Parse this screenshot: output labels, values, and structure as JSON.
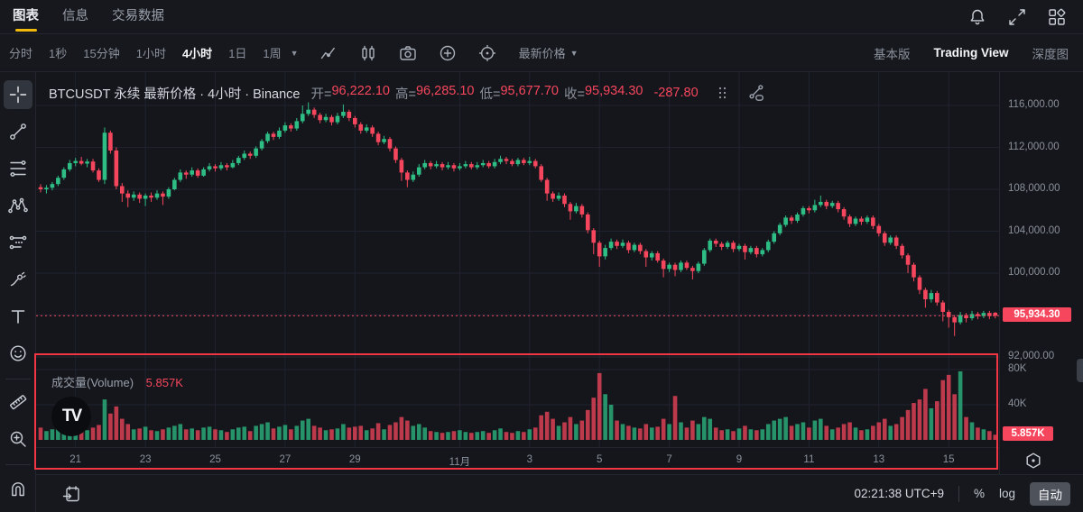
{
  "topbar": {
    "tabs": [
      {
        "label": "图表",
        "active": true
      },
      {
        "label": "信息",
        "active": false
      },
      {
        "label": "交易数据",
        "active": false
      }
    ],
    "icons": [
      "notifications",
      "fullscreen",
      "widgets"
    ]
  },
  "toolbar": {
    "intervals": [
      "分时",
      "1秒",
      "15分钟",
      "1小时",
      "4小时",
      "1日",
      "1周"
    ],
    "active_interval": "4小时",
    "latest_price_label": "最新价格",
    "icons": [
      "indicators",
      "candle-style",
      "screenshot",
      "add",
      "settings-target"
    ],
    "right_tabs": [
      {
        "label": "基本版",
        "active": false
      },
      {
        "label": "Trading View",
        "active": true
      },
      {
        "label": "深度图",
        "active": false
      }
    ]
  },
  "chart_header": {
    "title": "BTCUSDT 永续 最新价格 · 4小时 · Binance",
    "ohlc": [
      {
        "label": "开=",
        "value": "96,222.10"
      },
      {
        "label": "高=",
        "value": "96,285.10"
      },
      {
        "label": "低=",
        "value": "95,677.70"
      },
      {
        "label": "收=",
        "value": "95,934.30"
      }
    ],
    "change": "-287.80"
  },
  "sidebar": {
    "tools": [
      "crosshair",
      "trend-line",
      "fib-retracement",
      "xabcd-pattern",
      "projection",
      "brush",
      "text",
      "emoji",
      "divider",
      "ruler",
      "zoom-in",
      "divider"
    ],
    "active_tool": "crosshair",
    "bottom_tool": "magnet"
  },
  "volume_pane": {
    "title": "成交量(Volume)",
    "value": "5.857K",
    "logo": "TV"
  },
  "bottom_bar": {
    "clock": "02:21:38 UTC+9",
    "percent": "%",
    "log": "log",
    "auto": "自动"
  },
  "colors": {
    "up": "#2ebd85",
    "down": "#f6465d",
    "accent_yellow": "#f0b90b",
    "annotation_red": "#f23645",
    "badge_red": "#f6465d",
    "grid": "#1f2330",
    "background": "#14161b"
  },
  "chart_data": {
    "type": "candlestick",
    "symbol": "BTCUSDT",
    "market": "永续",
    "exchange": "Binance",
    "interval": "4小时",
    "price_axis": {
      "ticks": [
        {
          "label": "116,000.00",
          "value": 116000
        },
        {
          "label": "112,000.00",
          "value": 112000
        },
        {
          "label": "108,000.00",
          "value": 108000
        },
        {
          "label": "104,000.00",
          "value": 104000
        },
        {
          "label": "100,000.00",
          "value": 100000
        },
        {
          "label": "",
          "value": 96000
        },
        {
          "label": "92,000.00",
          "value": 92000
        }
      ],
      "visible_range": [
        91500,
        117300
      ]
    },
    "current_price": {
      "value": 95934.3,
      "label": "95,934.30"
    },
    "current_volume": {
      "value": 5.857,
      "label": "5.857K"
    },
    "volume_axis": {
      "ticks": [
        {
          "label": "80K",
          "value": 80
        },
        {
          "label": "40K",
          "value": 40
        }
      ],
      "unit": "K"
    },
    "x_ticks": [
      {
        "label": "21",
        "index": 6
      },
      {
        "label": "23",
        "index": 18
      },
      {
        "label": "25",
        "index": 30
      },
      {
        "label": "27",
        "index": 42
      },
      {
        "label": "29",
        "index": 54
      },
      {
        "label": "11月",
        "index": 72
      },
      {
        "label": "3",
        "index": 84
      },
      {
        "label": "5",
        "index": 96
      },
      {
        "label": "7",
        "index": 108
      },
      {
        "label": "9",
        "index": 120
      },
      {
        "label": "11",
        "index": 132
      },
      {
        "label": "13",
        "index": 144
      },
      {
        "label": "15",
        "index": 156
      }
    ],
    "candles_format": [
      "open",
      "high",
      "low",
      "close",
      "volume_K"
    ],
    "candles": [
      [
        108200,
        108500,
        107700,
        108000,
        14
      ],
      [
        108000,
        108400,
        107600,
        108150,
        10
      ],
      [
        108150,
        108700,
        107900,
        108500,
        12
      ],
      [
        108500,
        109300,
        108300,
        109100,
        16
      ],
      [
        109100,
        110100,
        108900,
        109900,
        18
      ],
      [
        109900,
        110800,
        109700,
        110500,
        20
      ],
      [
        110500,
        111000,
        110200,
        110700,
        15
      ],
      [
        110700,
        111100,
        110300,
        110450,
        12
      ],
      [
        110450,
        110900,
        110100,
        110650,
        11
      ],
      [
        110650,
        110900,
        109600,
        109800,
        14
      ],
      [
        109800,
        110000,
        108700,
        108900,
        17
      ],
      [
        108900,
        113900,
        108500,
        113400,
        46
      ],
      [
        113400,
        113600,
        111400,
        111700,
        30
      ],
      [
        111700,
        112000,
        108000,
        108300,
        38
      ],
      [
        108300,
        108600,
        106800,
        107600,
        24
      ],
      [
        107600,
        107900,
        106300,
        107200,
        18
      ],
      [
        107200,
        107800,
        106900,
        107500,
        12
      ],
      [
        107500,
        107700,
        106700,
        107100,
        13
      ],
      [
        107100,
        107600,
        106400,
        107400,
        15
      ],
      [
        107400,
        107700,
        106800,
        107200,
        11
      ],
      [
        107200,
        107900,
        107000,
        107600,
        10
      ],
      [
        107600,
        107800,
        106500,
        107300,
        12
      ],
      [
        107300,
        108200,
        107100,
        108000,
        14
      ],
      [
        108000,
        109100,
        107900,
        108900,
        16
      ],
      [
        108900,
        109900,
        108700,
        109600,
        18
      ],
      [
        109600,
        109800,
        109000,
        109400,
        12
      ],
      [
        109400,
        110100,
        109200,
        109800,
        13
      ],
      [
        109800,
        110000,
        109100,
        109300,
        11
      ],
      [
        109300,
        110100,
        109200,
        109900,
        14
      ],
      [
        109900,
        110500,
        109700,
        110200,
        15
      ],
      [
        110200,
        110400,
        109700,
        110000,
        12
      ],
      [
        110000,
        110600,
        109800,
        110300,
        11
      ],
      [
        110300,
        110500,
        109800,
        110100,
        9
      ],
      [
        110100,
        110800,
        110000,
        110500,
        12
      ],
      [
        110500,
        111200,
        110300,
        111000,
        14
      ],
      [
        111000,
        111700,
        110800,
        111400,
        15
      ],
      [
        111400,
        111600,
        110900,
        111200,
        10
      ],
      [
        111200,
        112100,
        111000,
        111900,
        16
      ],
      [
        111900,
        112800,
        111700,
        112600,
        18
      ],
      [
        112600,
        113500,
        112400,
        113300,
        20
      ],
      [
        113300,
        113500,
        112700,
        113000,
        13
      ],
      [
        113000,
        113900,
        112800,
        113600,
        15
      ],
      [
        113600,
        114400,
        113400,
        114100,
        17
      ],
      [
        114100,
        114300,
        113500,
        113800,
        12
      ],
      [
        113800,
        114800,
        113600,
        114500,
        16
      ],
      [
        114500,
        116000,
        114300,
        115200,
        22
      ],
      [
        115200,
        116300,
        115000,
        115600,
        24
      ],
      [
        115600,
        115800,
        114800,
        115100,
        16
      ],
      [
        115100,
        115300,
        114300,
        114600,
        14
      ],
      [
        114600,
        115200,
        114400,
        114900,
        11
      ],
      [
        114900,
        115100,
        114100,
        114400,
        12
      ],
      [
        114400,
        115300,
        114200,
        115000,
        13
      ],
      [
        115000,
        116100,
        114800,
        115400,
        18
      ],
      [
        115400,
        115600,
        114500,
        114800,
        14
      ],
      [
        114800,
        115000,
        113900,
        114200,
        15
      ],
      [
        114200,
        114400,
        113300,
        113600,
        16
      ],
      [
        113600,
        114200,
        113400,
        113900,
        11
      ],
      [
        113900,
        114100,
        113000,
        113300,
        13
      ],
      [
        113300,
        113500,
        112200,
        112500,
        19
      ],
      [
        112500,
        113100,
        112300,
        112800,
        12
      ],
      [
        112800,
        113000,
        111600,
        111900,
        17
      ],
      [
        111900,
        112100,
        110500,
        110800,
        20
      ],
      [
        110800,
        111000,
        108800,
        109600,
        26
      ],
      [
        109600,
        109800,
        108200,
        108900,
        22
      ],
      [
        108900,
        109700,
        108700,
        109400,
        16
      ],
      [
        109400,
        110400,
        109200,
        110100,
        18
      ],
      [
        110100,
        110800,
        109900,
        110500,
        14
      ],
      [
        110500,
        110700,
        109900,
        110200,
        10
      ],
      [
        110200,
        110700,
        110000,
        110400,
        9
      ],
      [
        110400,
        110600,
        109800,
        110100,
        8
      ],
      [
        110100,
        110600,
        109900,
        110300,
        9
      ],
      [
        110300,
        110500,
        109700,
        110000,
        10
      ],
      [
        110000,
        110500,
        109800,
        110200,
        11
      ],
      [
        110200,
        110700,
        110000,
        110400,
        9
      ],
      [
        110400,
        110600,
        109900,
        110100,
        8
      ],
      [
        110100,
        110600,
        109900,
        110300,
        9
      ],
      [
        110300,
        110800,
        110100,
        110500,
        10
      ],
      [
        110500,
        110700,
        110000,
        110200,
        8
      ],
      [
        110200,
        110900,
        110000,
        110600,
        11
      ],
      [
        110600,
        111200,
        110400,
        110900,
        13
      ],
      [
        110900,
        111100,
        110400,
        110700,
        9
      ],
      [
        110700,
        110900,
        110200,
        110400,
        8
      ],
      [
        110400,
        111000,
        110200,
        110800,
        10
      ],
      [
        110800,
        111000,
        110300,
        110500,
        9
      ],
      [
        110500,
        111100,
        110300,
        110700,
        12
      ],
      [
        110700,
        110900,
        110000,
        110200,
        14
      ],
      [
        110200,
        110400,
        108700,
        108900,
        28
      ],
      [
        108900,
        109100,
        106900,
        107600,
        32
      ],
      [
        107600,
        107800,
        106800,
        107100,
        24
      ],
      [
        107100,
        107700,
        106900,
        107400,
        16
      ],
      [
        107400,
        107600,
        106300,
        106600,
        20
      ],
      [
        106600,
        106800,
        105100,
        105900,
        26
      ],
      [
        105900,
        106700,
        105700,
        106400,
        18
      ],
      [
        106400,
        106600,
        105300,
        105600,
        22
      ],
      [
        105600,
        105800,
        103800,
        104100,
        34
      ],
      [
        104100,
        104300,
        101800,
        102900,
        48
      ],
      [
        102900,
        103100,
        100600,
        101600,
        76
      ],
      [
        101600,
        102700,
        101300,
        102400,
        52
      ],
      [
        102400,
        103300,
        102200,
        103000,
        40
      ],
      [
        103000,
        103200,
        102300,
        102600,
        22
      ],
      [
        102600,
        103200,
        102400,
        102900,
        18
      ],
      [
        102900,
        103100,
        101900,
        102200,
        16
      ],
      [
        102200,
        102900,
        102000,
        102700,
        14
      ],
      [
        102700,
        102900,
        101800,
        102100,
        13
      ],
      [
        102100,
        102300,
        100600,
        101500,
        18
      ],
      [
        101500,
        102100,
        101200,
        101900,
        14
      ],
      [
        101900,
        102100,
        101000,
        101200,
        15
      ],
      [
        101200,
        101400,
        99600,
        100400,
        24
      ],
      [
        100400,
        101000,
        100100,
        100800,
        18
      ],
      [
        100800,
        101000,
        99700,
        100300,
        50
      ],
      [
        100300,
        101200,
        100100,
        101000,
        20
      ],
      [
        101000,
        101200,
        100300,
        100500,
        14
      ],
      [
        100500,
        100700,
        99400,
        100200,
        22
      ],
      [
        100200,
        101100,
        100000,
        100900,
        18
      ],
      [
        100900,
        102400,
        100700,
        102200,
        26
      ],
      [
        102200,
        103300,
        102000,
        103100,
        24
      ],
      [
        103100,
        103300,
        102500,
        102800,
        14
      ],
      [
        102800,
        103000,
        102200,
        102500,
        11
      ],
      [
        102500,
        103100,
        102300,
        102900,
        12
      ],
      [
        102900,
        103100,
        102000,
        102300,
        10
      ],
      [
        102300,
        102800,
        102100,
        102600,
        13
      ],
      [
        102600,
        102800,
        101300,
        102000,
        16
      ],
      [
        102000,
        102600,
        101800,
        102400,
        12
      ],
      [
        102400,
        102600,
        101500,
        101800,
        11
      ],
      [
        101800,
        102400,
        101600,
        102200,
        12
      ],
      [
        102200,
        103200,
        102000,
        103000,
        18
      ],
      [
        103000,
        104000,
        102800,
        103800,
        22
      ],
      [
        103800,
        104800,
        103600,
        104600,
        24
      ],
      [
        104600,
        105500,
        104400,
        105300,
        26
      ],
      [
        105300,
        105500,
        104700,
        105000,
        16
      ],
      [
        105000,
        105800,
        104800,
        105600,
        18
      ],
      [
        105600,
        106400,
        105400,
        106200,
        20
      ],
      [
        106200,
        106400,
        105700,
        106000,
        14
      ],
      [
        106000,
        107000,
        105800,
        106500,
        22
      ],
      [
        106500,
        107400,
        106300,
        106800,
        24
      ],
      [
        106800,
        107000,
        106100,
        106400,
        16
      ],
      [
        106400,
        106900,
        106200,
        106700,
        12
      ],
      [
        106700,
        106900,
        105800,
        106100,
        14
      ],
      [
        106100,
        106300,
        105100,
        105400,
        18
      ],
      [
        105400,
        105600,
        104400,
        104700,
        20
      ],
      [
        104700,
        105400,
        104500,
        105200,
        14
      ],
      [
        105200,
        105400,
        104600,
        104900,
        11
      ],
      [
        104900,
        105500,
        104700,
        105300,
        12
      ],
      [
        105300,
        105500,
        104200,
        104500,
        16
      ],
      [
        104500,
        104700,
        103500,
        103800,
        20
      ],
      [
        103800,
        104000,
        102600,
        102900,
        24
      ],
      [
        102900,
        103600,
        102700,
        103400,
        16
      ],
      [
        103400,
        103600,
        102300,
        102600,
        18
      ],
      [
        102600,
        102800,
        101400,
        101700,
        26
      ],
      [
        101700,
        101900,
        100000,
        100800,
        34
      ],
      [
        100800,
        101000,
        99200,
        99600,
        42
      ],
      [
        99600,
        99800,
        98000,
        98400,
        46
      ],
      [
        98400,
        98600,
        96700,
        97500,
        58
      ],
      [
        97500,
        98400,
        97200,
        98100,
        36
      ],
      [
        98100,
        98300,
        96900,
        97200,
        44
      ],
      [
        97200,
        97400,
        95400,
        96300,
        68
      ],
      [
        96300,
        96500,
        94800,
        95800,
        74
      ],
      [
        95800,
        96000,
        94000,
        95300,
        52
      ],
      [
        95300,
        96300,
        95100,
        96000,
        78
      ],
      [
        96000,
        96200,
        95300,
        95700,
        26
      ],
      [
        95700,
        96400,
        95500,
        96100,
        20
      ],
      [
        96100,
        96300,
        95600,
        95900,
        14
      ],
      [
        95900,
        96400,
        95700,
        96200,
        12
      ],
      [
        96200,
        96400,
        95600,
        95900,
        10
      ],
      [
        96222.1,
        96285.1,
        95677.7,
        95934.3,
        5.857
      ]
    ]
  }
}
